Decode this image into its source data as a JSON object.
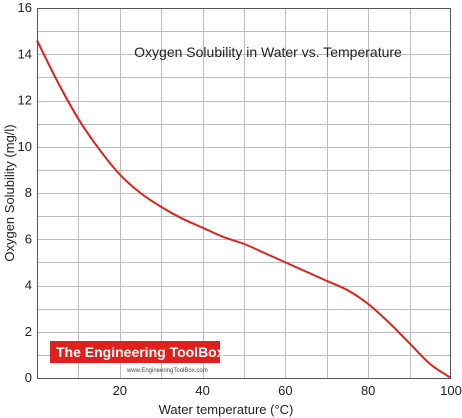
{
  "chart_data": {
    "type": "line",
    "title": "Oxygen Solubility in Water vs. Temperature",
    "xlabel": "Water temperature (°C)",
    "ylabel": "Oxygen Solubility (mg/l)",
    "xlim": [
      0,
      100
    ],
    "ylim": [
      0,
      16
    ],
    "x_ticks": [
      20,
      40,
      60,
      80,
      100
    ],
    "y_ticks": [
      0,
      2,
      4,
      6,
      8,
      10,
      12,
      14,
      16
    ],
    "grid": true,
    "series": [
      {
        "color": "#e0211b",
        "x": [
          0,
          5,
          10,
          15,
          20,
          25,
          30,
          35,
          40,
          45,
          50,
          55,
          60,
          65,
          70,
          75,
          80,
          85,
          90,
          95,
          100
        ],
        "y": [
          14.6,
          12.8,
          11.2,
          9.9,
          8.8,
          8.0,
          7.4,
          6.9,
          6.5,
          6.1,
          5.8,
          5.4,
          5.0,
          4.6,
          4.2,
          3.8,
          3.2,
          2.4,
          1.5,
          0.6,
          0
        ]
      }
    ]
  },
  "watermark": {
    "brand": "The Engineering ToolBox",
    "url": "www.EngineeringToolBox.com",
    "brand_color": "#e0211b"
  }
}
